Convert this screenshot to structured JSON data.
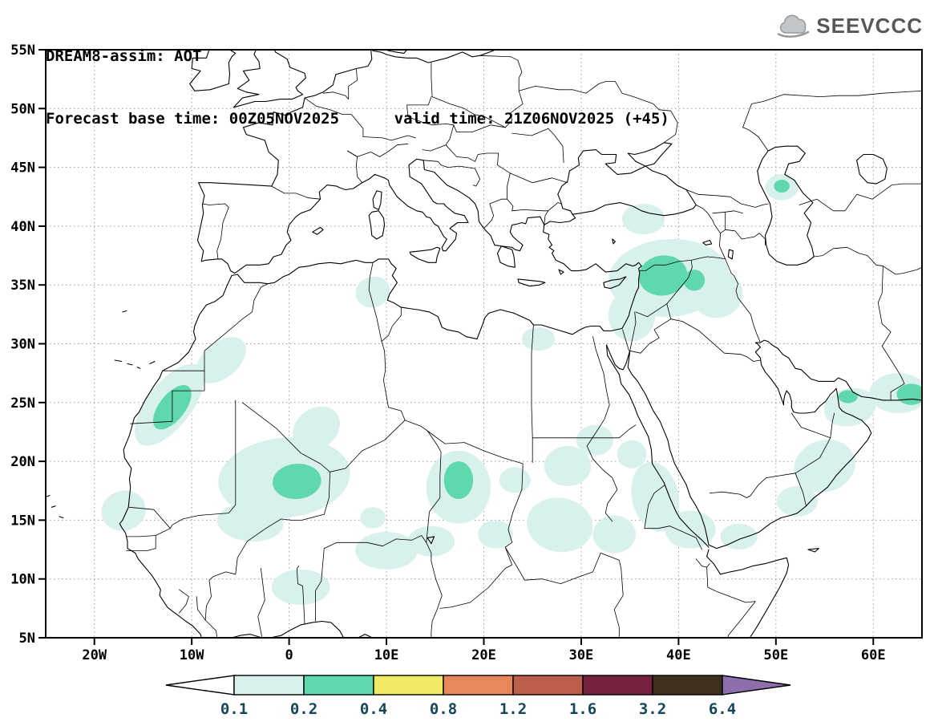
{
  "header": {
    "title_line1": "DREAM8-assim: AOT",
    "title_line2": "Forecast base time: 00Z05NOV2025      valid time: 21Z06NOV2025 (+45)"
  },
  "logo": {
    "text": "SEEVCCC"
  },
  "map": {
    "lat_labels": [
      "55N",
      "50N",
      "45N",
      "40N",
      "35N",
      "30N",
      "25N",
      "20N",
      "15N",
      "10N",
      "5N"
    ],
    "lat_values": [
      55,
      50,
      45,
      40,
      35,
      30,
      25,
      20,
      15,
      10,
      5
    ],
    "lon_labels": [
      "20W",
      "10W",
      "0",
      "10E",
      "20E",
      "30E",
      "40E",
      "50E",
      "60E"
    ],
    "lon_values": [
      -20,
      -10,
      0,
      10,
      20,
      30,
      40,
      50,
      60
    ],
    "lon_range": [
      -25,
      65
    ],
    "lat_range": [
      5,
      55
    ]
  },
  "colorbar": {
    "values": [
      "0.1",
      "0.2",
      "0.4",
      "0.8",
      "1.2",
      "1.6",
      "3.2",
      "6.4"
    ],
    "segment_colors": [
      "#ffffff",
      "#d9f1ed",
      "#5fd8ad",
      "#f0e966",
      "#e8875a",
      "#bc5f4a",
      "#75213f",
      "#3d301d",
      "#8e6fae"
    ],
    "label_color": "#14465a"
  },
  "level_colors": {
    "0.1-0.2": "#d9f1ed",
    "0.2-0.4": "#5fd8ad"
  },
  "aot_regions": [
    {
      "lon": -12.3,
      "lat": 24.8,
      "rx": 5.0,
      "ry": 1.9,
      "rot": -52,
      "level": "0.1-0.2"
    },
    {
      "lon": -7.0,
      "lat": 28.6,
      "rx": 3.0,
      "ry": 1.5,
      "rot": -40,
      "level": "0.1-0.2"
    },
    {
      "lon": -17.0,
      "lat": 15.8,
      "rx": 2.3,
      "ry": 1.7,
      "rot": -15,
      "level": "0.1-0.2"
    },
    {
      "lon": -0.5,
      "lat": 18.6,
      "rx": 6.8,
      "ry": 3.4,
      "rot": -6,
      "level": "0.1-0.2"
    },
    {
      "lon": -4.0,
      "lat": 14.8,
      "rx": 3.4,
      "ry": 1.6,
      "rot": 5,
      "level": "0.1-0.2"
    },
    {
      "lon": 2.8,
      "lat": 22.8,
      "rx": 2.6,
      "ry": 1.7,
      "rot": -35,
      "level": "0.1-0.2"
    },
    {
      "lon": 1.2,
      "lat": 9.3,
      "rx": 3.0,
      "ry": 1.5,
      "rot": 0,
      "level": "0.1-0.2"
    },
    {
      "lon": 10.0,
      "lat": 12.4,
      "rx": 3.2,
      "ry": 1.6,
      "rot": 0,
      "level": "0.1-0.2"
    },
    {
      "lon": 8.6,
      "lat": 15.2,
      "rx": 1.3,
      "ry": 0.9,
      "rot": 0,
      "level": "0.1-0.2"
    },
    {
      "lon": 17.4,
      "lat": 17.8,
      "rx": 3.3,
      "ry": 3.1,
      "rot": 0,
      "level": "0.1-0.2"
    },
    {
      "lon": 14.6,
      "lat": 13.2,
      "rx": 2.4,
      "ry": 1.3,
      "rot": 0,
      "level": "0.1-0.2"
    },
    {
      "lon": 21.2,
      "lat": 13.8,
      "rx": 1.8,
      "ry": 1.2,
      "rot": 0,
      "level": "0.1-0.2"
    },
    {
      "lon": 27.8,
      "lat": 14.6,
      "rx": 3.4,
      "ry": 2.3,
      "rot": 10,
      "level": "0.1-0.2"
    },
    {
      "lon": 28.6,
      "lat": 19.6,
      "rx": 2.4,
      "ry": 1.7,
      "rot": 0,
      "level": "0.1-0.2"
    },
    {
      "lon": 23.2,
      "lat": 18.4,
      "rx": 1.6,
      "ry": 1.1,
      "rot": 0,
      "level": "0.1-0.2"
    },
    {
      "lon": 33.4,
      "lat": 13.8,
      "rx": 2.2,
      "ry": 1.6,
      "rot": 0,
      "level": "0.1-0.2"
    },
    {
      "lon": 35.2,
      "lat": 20.6,
      "rx": 1.5,
      "ry": 1.2,
      "rot": 0,
      "level": "0.1-0.2"
    },
    {
      "lon": 37.6,
      "lat": 17.0,
      "rx": 2.4,
      "ry": 3.0,
      "rot": -12,
      "level": "0.1-0.2"
    },
    {
      "lon": 41.2,
      "lat": 14.2,
      "rx": 2.6,
      "ry": 1.6,
      "rot": 0,
      "level": "0.1-0.2"
    },
    {
      "lon": 25.6,
      "lat": 30.4,
      "rx": 1.7,
      "ry": 1.0,
      "rot": 0,
      "level": "0.1-0.2"
    },
    {
      "lon": 31.4,
      "lat": 21.8,
      "rx": 1.9,
      "ry": 1.3,
      "rot": 0,
      "level": "0.1-0.2"
    },
    {
      "lon": 8.6,
      "lat": 34.4,
      "rx": 1.8,
      "ry": 1.3,
      "rot": -20,
      "level": "0.1-0.2"
    },
    {
      "lon": 39.0,
      "lat": 35.6,
      "rx": 6.2,
      "ry": 3.3,
      "rot": -4,
      "level": "0.1-0.2"
    },
    {
      "lon": 35.2,
      "lat": 32.4,
      "rx": 2.4,
      "ry": 2.2,
      "rot": 0,
      "level": "0.1-0.2"
    },
    {
      "lon": 44.0,
      "lat": 34.2,
      "rx": 2.6,
      "ry": 2.0,
      "rot": -15,
      "level": "0.1-0.2"
    },
    {
      "lon": 36.4,
      "lat": 40.6,
      "rx": 2.2,
      "ry": 1.3,
      "rot": 0,
      "level": "0.1-0.2"
    },
    {
      "lon": 50.6,
      "lat": 43.3,
      "rx": 1.7,
      "ry": 1.1,
      "rot": 0,
      "level": "0.1-0.2"
    },
    {
      "lon": 55.0,
      "lat": 19.6,
      "rx": 3.2,
      "ry": 2.2,
      "rot": -18,
      "level": "0.1-0.2"
    },
    {
      "lon": 57.6,
      "lat": 24.6,
      "rx": 2.7,
      "ry": 1.6,
      "rot": -12,
      "level": "0.1-0.2"
    },
    {
      "lon": 62.6,
      "lat": 25.8,
      "rx": 3.0,
      "ry": 1.7,
      "rot": 0,
      "level": "0.1-0.2"
    },
    {
      "lon": 52.2,
      "lat": 16.6,
      "rx": 2.1,
      "ry": 1.3,
      "rot": 0,
      "level": "0.1-0.2"
    },
    {
      "lon": 46.2,
      "lat": 13.6,
      "rx": 1.9,
      "ry": 1.1,
      "rot": 0,
      "level": "0.1-0.2"
    },
    {
      "lon": -12.0,
      "lat": 24.6,
      "rx": 2.7,
      "ry": 1.1,
      "rot": -52,
      "level": "0.2-0.4"
    },
    {
      "lon": 0.8,
      "lat": 18.3,
      "rx": 2.5,
      "ry": 1.5,
      "rot": -5,
      "level": "0.2-0.4"
    },
    {
      "lon": 17.4,
      "lat": 18.4,
      "rx": 1.5,
      "ry": 1.6,
      "rot": 0,
      "level": "0.2-0.4"
    },
    {
      "lon": 38.4,
      "lat": 35.8,
      "rx": 2.5,
      "ry": 1.7,
      "rot": -8,
      "level": "0.2-0.4"
    },
    {
      "lon": 41.6,
      "lat": 35.4,
      "rx": 1.1,
      "ry": 0.9,
      "rot": 0,
      "level": "0.2-0.4"
    },
    {
      "lon": 50.6,
      "lat": 43.4,
      "rx": 0.8,
      "ry": 0.55,
      "rot": 0,
      "level": "0.2-0.4"
    },
    {
      "lon": 57.4,
      "lat": 25.5,
      "rx": 1.0,
      "ry": 0.55,
      "rot": 0,
      "level": "0.2-0.4"
    },
    {
      "lon": 63.9,
      "lat": 25.7,
      "rx": 1.5,
      "ry": 0.9,
      "rot": 0,
      "level": "0.2-0.4"
    }
  ]
}
